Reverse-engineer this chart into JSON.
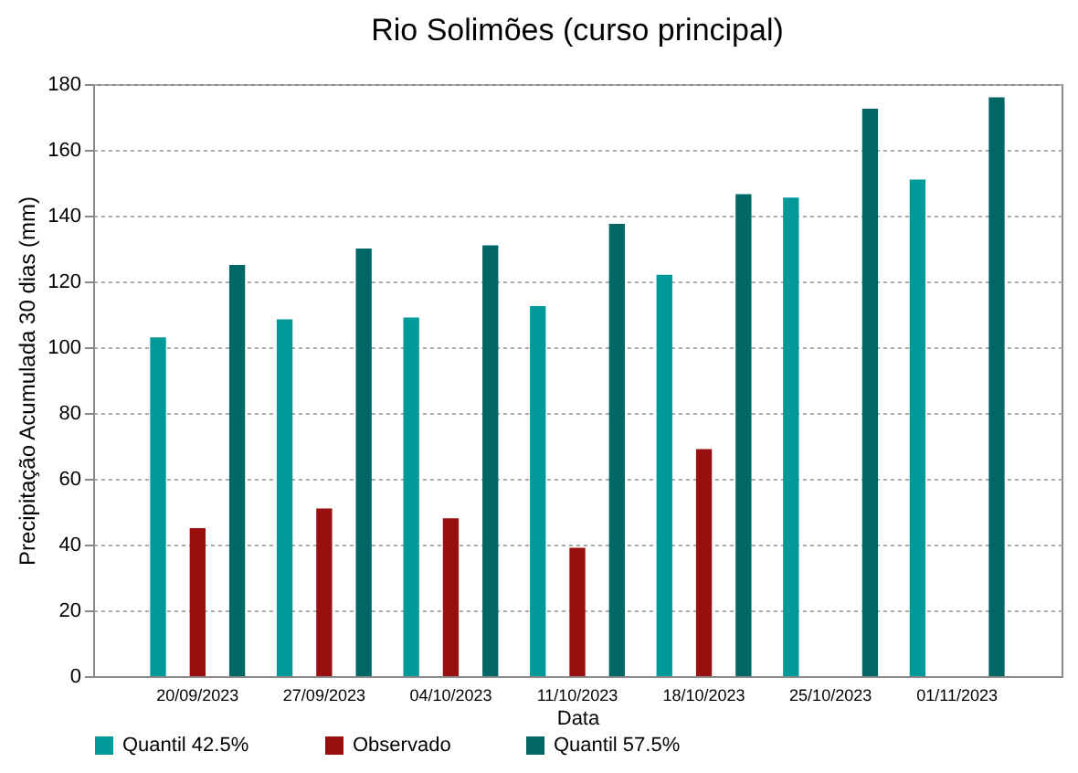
{
  "chart_data": {
    "type": "bar",
    "title": "Rio Solimões (curso principal)",
    "xlabel": "Data",
    "ylabel": "Precipitação Acumulada 30 dias (mm)",
    "categories": [
      "20/09/2023",
      "27/09/2023",
      "04/10/2023",
      "11/10/2023",
      "18/10/2023",
      "25/10/2023",
      "01/11/2023"
    ],
    "series": [
      {
        "name": "Quantil 42.5%",
        "color": "#009999",
        "values": [
          103,
          108.5,
          109,
          112.5,
          122,
          145.5,
          151
        ]
      },
      {
        "name": "Observado",
        "color": "#990f0f",
        "values": [
          45,
          51,
          48,
          39,
          69,
          null,
          null
        ]
      },
      {
        "name": "Quantil 57.5%",
        "color": "#006666",
        "values": [
          125,
          130,
          131,
          137.5,
          146.5,
          172.5,
          176
        ]
      }
    ],
    "ylim": [
      0,
      180
    ],
    "yticks": [
      0,
      20,
      40,
      60,
      80,
      100,
      120,
      140,
      160,
      180
    ],
    "grid": "y",
    "legend": "bottom"
  }
}
